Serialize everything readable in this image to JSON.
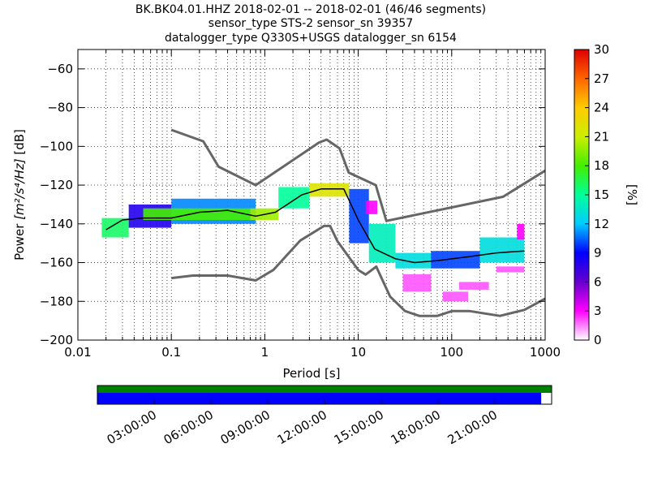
{
  "title_lines": [
    "BK.BK04.01.HHZ   2018-02-01 -- 2018-02-01  (46/46 segments)",
    "sensor_type STS-2 sensor_sn 39357",
    "datalogger_type Q330S+USGS datalogger_sn 6154"
  ],
  "colors": {
    "noise_model": "#666666",
    "mode_line": "#000000",
    "coverage_top": "#008000",
    "coverage_bottom": "#0000ff",
    "grid": "#000000",
    "colormap": [
      "#ffffff",
      "#ff00ff",
      "#6600cc",
      "#0000ff",
      "#00ccff",
      "#00ff99",
      "#44ee00",
      "#ccee00",
      "#ffcc00",
      "#ff6600",
      "#dd0000"
    ]
  },
  "chart_data": {
    "type": "heatmap",
    "xlabel": "Period [s]",
    "ylabel": "Power [m²/s⁴/Hz] [dB]",
    "ylabel_parts": {
      "prefix": "Power ",
      "expr": "[m²/s⁴/Hz]",
      "suffix": " [dB]"
    },
    "x_scale": "log",
    "xlim": [
      0.01,
      1000
    ],
    "ylim": [
      -200,
      -50
    ],
    "x_ticks": [
      0.01,
      0.1,
      1,
      10,
      100,
      1000
    ],
    "x_tick_labels": [
      "0.01",
      "0.1",
      "1",
      "10",
      "100",
      "1000"
    ],
    "y_ticks": [
      -60,
      -80,
      -100,
      -120,
      -140,
      -160,
      -180,
      -200
    ],
    "y_tick_labels": [
      "−60",
      "−80",
      "−100",
      "−120",
      "−140",
      "−160",
      "−180",
      "−200"
    ],
    "grid": true,
    "colorbar": {
      "label": "[%]",
      "range": [
        0,
        30
      ],
      "ticks": [
        0,
        3,
        6,
        9,
        12,
        15,
        18,
        21,
        24,
        27,
        30
      ],
      "tick_labels": [
        "0",
        "3",
        "6",
        "9",
        "12",
        "15",
        "18",
        "21",
        "24",
        "27",
        "30"
      ]
    },
    "mode_line": {
      "period": [
        0.02,
        0.03,
        0.05,
        0.1,
        0.2,
        0.4,
        0.8,
        1.3,
        2.5,
        4,
        7,
        10,
        15,
        25,
        40,
        70,
        150,
        300,
        600
      ],
      "power": [
        -143,
        -138,
        -137,
        -137,
        -134,
        -133,
        -136,
        -134,
        -125,
        -122,
        -122,
        -138,
        -153,
        -158,
        -160,
        -159,
        -157,
        -155,
        -154
      ]
    },
    "density": [
      {
        "period": [
          0.018,
          0.035
        ],
        "power": [
          -147,
          -137
        ],
        "pct": 16
      },
      {
        "period": [
          0.035,
          0.1
        ],
        "power": [
          -142,
          -130
        ],
        "pct": 8
      },
      {
        "period": [
          0.1,
          0.8
        ],
        "power": [
          -140,
          -127
        ],
        "pct": 11
      },
      {
        "period": [
          0.05,
          0.7
        ],
        "power": [
          -138,
          -132
        ],
        "pct": 18
      },
      {
        "period": [
          0.7,
          1.4
        ],
        "power": [
          -138,
          -132
        ],
        "pct": 20
      },
      {
        "period": [
          1.4,
          3
        ],
        "power": [
          -132,
          -121
        ],
        "pct": 15
      },
      {
        "period": [
          3,
          8
        ],
        "power": [
          -126,
          -119
        ],
        "pct": 22
      },
      {
        "period": [
          8,
          13
        ],
        "power": [
          -150,
          -122
        ],
        "pct": 10
      },
      {
        "period": [
          13,
          25
        ],
        "power": [
          -160,
          -140
        ],
        "pct": 14
      },
      {
        "period": [
          25,
          60
        ],
        "power": [
          -163,
          -155
        ],
        "pct": 13
      },
      {
        "period": [
          60,
          200
        ],
        "power": [
          -163,
          -154
        ],
        "pct": 10
      },
      {
        "period": [
          200,
          600
        ],
        "power": [
          -160,
          -147
        ],
        "pct": 13
      },
      {
        "period": [
          12,
          16
        ],
        "power": [
          -135,
          -128
        ],
        "pct": 3
      },
      {
        "period": [
          30,
          60
        ],
        "power": [
          -175,
          -166
        ],
        "pct": 2
      },
      {
        "period": [
          80,
          150
        ],
        "power": [
          -180,
          -175
        ],
        "pct": 2
      },
      {
        "period": [
          120,
          250
        ],
        "power": [
          -174,
          -170
        ],
        "pct": 2
      },
      {
        "period": [
          300,
          600
        ],
        "power": [
          -165,
          -162
        ],
        "pct": 2
      },
      {
        "period": [
          500,
          600
        ],
        "power": [
          -148,
          -140
        ],
        "pct": 3
      }
    ],
    "high_noise_model": {
      "period": [
        0.1,
        0.22,
        0.32,
        0.8,
        3.8,
        4.6,
        6.3,
        7.9,
        15.4,
        20,
        354.8,
        1000
      ],
      "power": [
        -91.5,
        -97.4,
        -110.5,
        -120,
        -98,
        -96.5,
        -101,
        -113.5,
        -120,
        -138.5,
        -126,
        -112.5
      ]
    },
    "low_noise_model": {
      "period": [
        0.1,
        0.17,
        0.4,
        0.8,
        1.24,
        2.4,
        4.3,
        5,
        6,
        10,
        12,
        15.6,
        21.9,
        31.6,
        45,
        70,
        101,
        154,
        328,
        600,
        1000
      ],
      "power": [
        -168,
        -166.7,
        -166.7,
        -169.2,
        -163.7,
        -148.6,
        -141.1,
        -141.1,
        -149,
        -163.8,
        -166.2,
        -162.1,
        -177.5,
        -185,
        -187.5,
        -187.5,
        -185,
        -185,
        -187.5,
        -184.4,
        -178.6
      ]
    },
    "coverage": {
      "time_tick_labels": [
        "03:00:00",
        "06:00:00",
        "09:00:00",
        "12:00:00",
        "15:00:00",
        "18:00:00",
        "21:00:00"
      ],
      "covered_fraction": 0.977
    }
  }
}
